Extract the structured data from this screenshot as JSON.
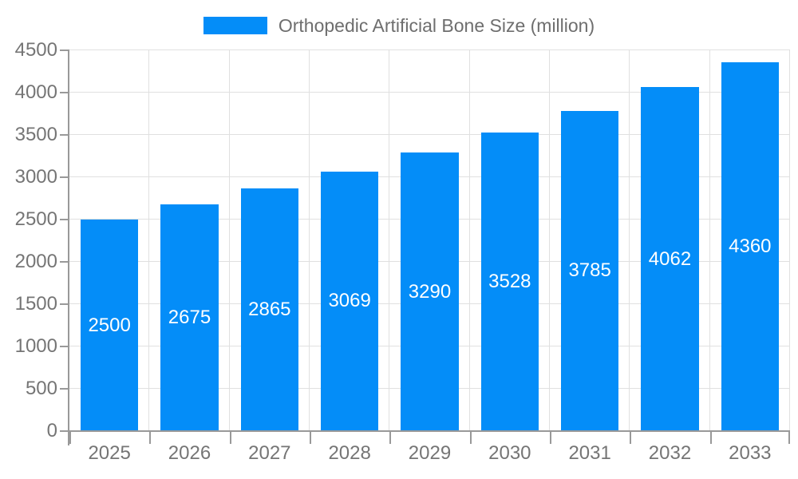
{
  "legend": {
    "label": "Orthopedic Artificial Bone Size (million)",
    "swatch_color": "#048df8"
  },
  "chart_data": {
    "type": "bar",
    "title": "Orthopedic Artificial Bone Size (million)",
    "categories": [
      "2025",
      "2026",
      "2027",
      "2028",
      "2029",
      "2030",
      "2031",
      "2032",
      "2033"
    ],
    "values": [
      2500,
      2675,
      2865,
      3069,
      3290,
      3528,
      3785,
      4062,
      4360
    ],
    "xlabel": "",
    "ylabel": "",
    "ylim": [
      0,
      4500
    ],
    "ytick_step": 500,
    "yticks": [
      0,
      500,
      1000,
      1500,
      2000,
      2500,
      3000,
      3500,
      4000,
      4500
    ],
    "bar_color": "#048df8",
    "bar_width_fraction": 0.72,
    "value_label_color": "#ffffff",
    "value_label_position": "inside-center",
    "grid": true,
    "legend_position": "top"
  },
  "colors": {
    "background": "#ffffff",
    "grid_line": "#e0e0e0",
    "axis_line": "#999999",
    "tick_label": "#757575",
    "legend_text": "#6e6e6e"
  }
}
